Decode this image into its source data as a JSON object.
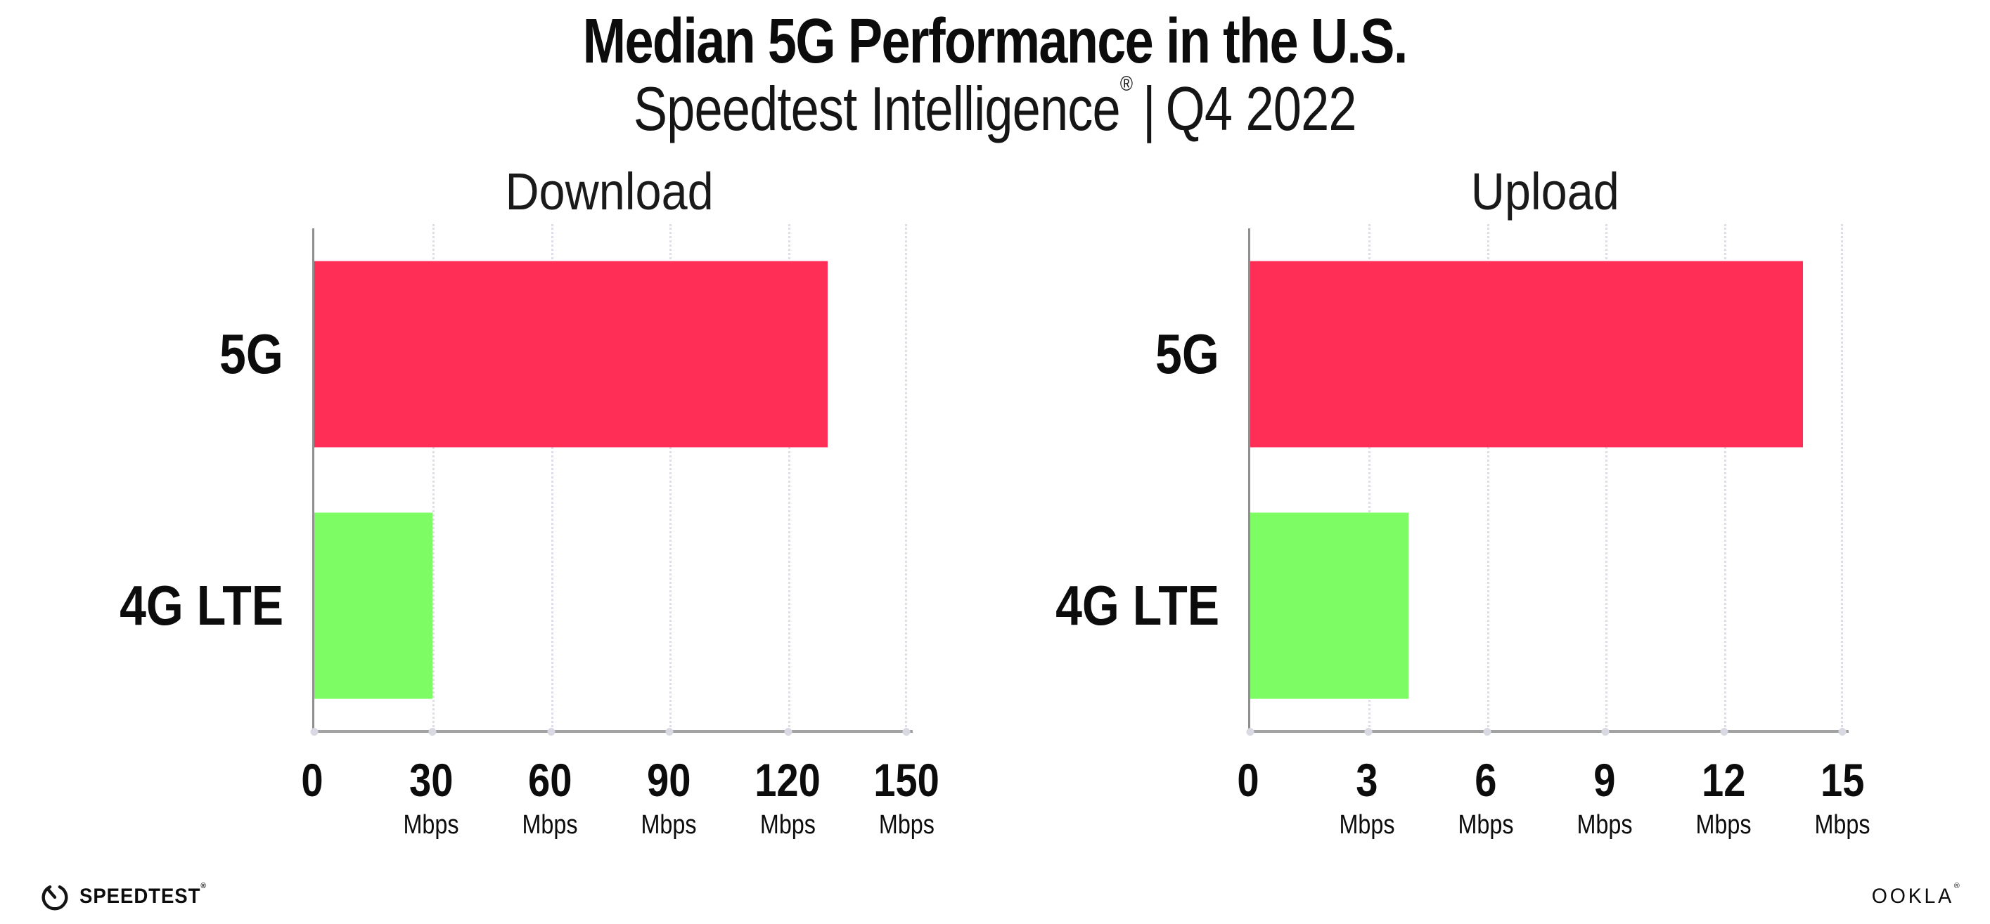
{
  "page": {
    "title": "Median 5G Performance in the U.S.",
    "subtitle": {
      "brand": "Speedtest Intelligence",
      "reg": "®",
      "separator": "|",
      "period": "Q4 2022"
    },
    "background": "#FFFFFF"
  },
  "colors": {
    "bar_5g": "#FF2E56",
    "bar_4g_lte": "#7DFC64",
    "axis_line": "#A2A2A2",
    "y_spine": "#8F8F8F",
    "gridline": "#DEDEE8",
    "tick_dot": "#D9D9E3",
    "text": "#0C0C0C"
  },
  "chart_data": [
    {
      "type": "bar",
      "orientation": "horizontal",
      "title": "Download",
      "categories": [
        "5G",
        "4G LTE"
      ],
      "values": [
        130,
        30
      ],
      "unit": "Mbps",
      "xlim": [
        0,
        150
      ],
      "xticks": [
        0,
        30,
        60,
        90,
        120,
        150
      ],
      "bar_colors": [
        "#FF2E56",
        "#7DFC64"
      ],
      "grid": "dotted-vertical",
      "legend": "none",
      "tick_labels": [
        {
          "value": "0",
          "unit": ""
        },
        {
          "value": "30",
          "unit": "Mbps"
        },
        {
          "value": "60",
          "unit": "Mbps"
        },
        {
          "value": "90",
          "unit": "Mbps"
        },
        {
          "value": "120",
          "unit": "Mbps"
        },
        {
          "value": "150",
          "unit": "Mbps"
        }
      ]
    },
    {
      "type": "bar",
      "orientation": "horizontal",
      "title": "Upload",
      "categories": [
        "5G",
        "4G LTE"
      ],
      "values": [
        14,
        4
      ],
      "unit": "Mbps",
      "xlim": [
        0,
        15
      ],
      "xticks": [
        0,
        3,
        6,
        9,
        12,
        15
      ],
      "bar_colors": [
        "#FF2E56",
        "#7DFC64"
      ],
      "grid": "dotted-vertical",
      "legend": "none",
      "tick_labels": [
        {
          "value": "0",
          "unit": ""
        },
        {
          "value": "3",
          "unit": "Mbps"
        },
        {
          "value": "6",
          "unit": "Mbps"
        },
        {
          "value": "9",
          "unit": "Mbps"
        },
        {
          "value": "12",
          "unit": "Mbps"
        },
        {
          "value": "15",
          "unit": "Mbps"
        }
      ]
    }
  ],
  "footer": {
    "speedtest_label": "SPEEDTEST",
    "speedtest_reg": "®",
    "ookla_label": "OOKLA",
    "ookla_reg": "®"
  }
}
